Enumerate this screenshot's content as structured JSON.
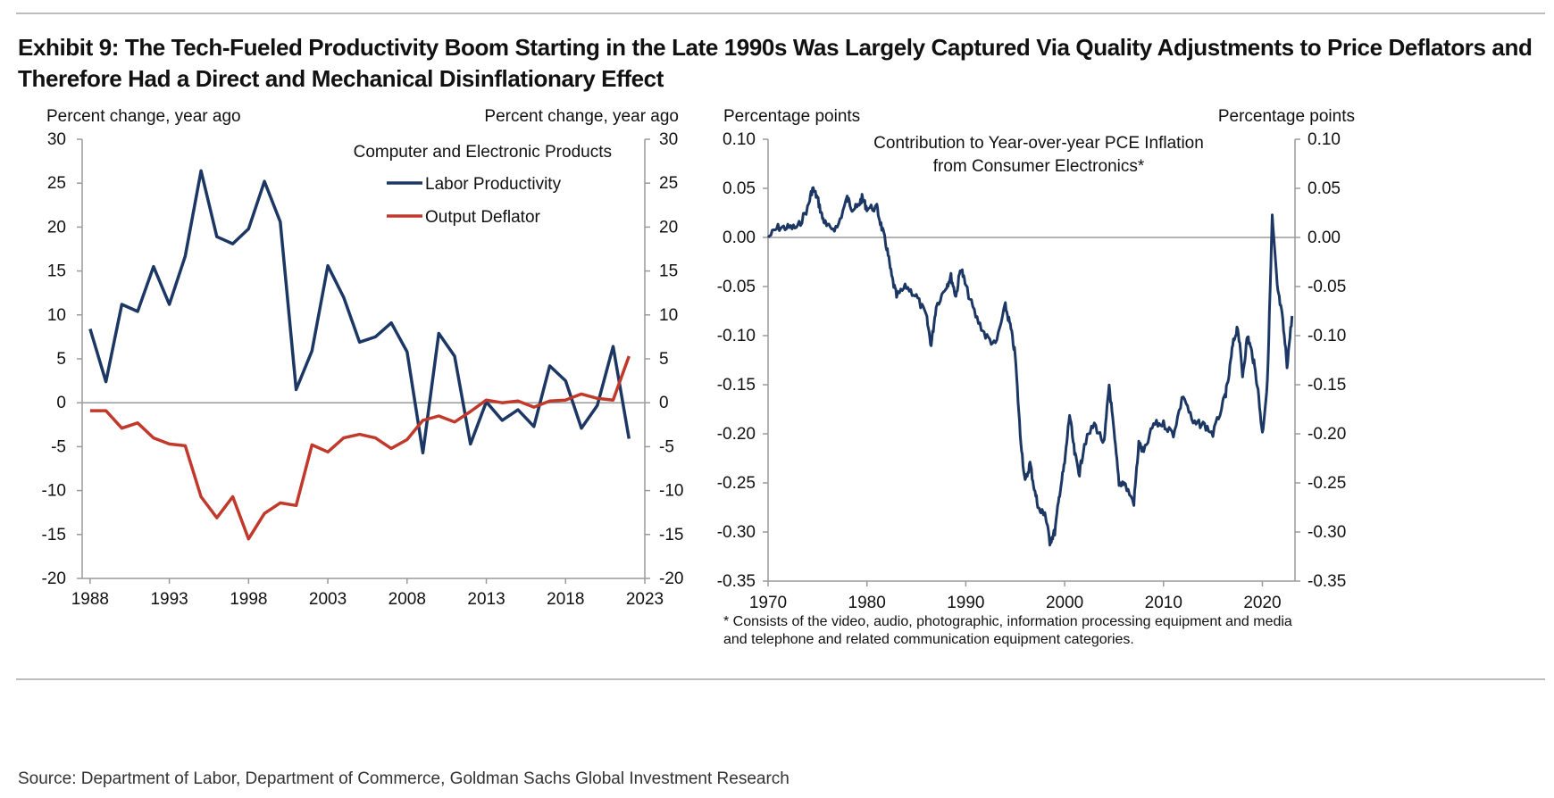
{
  "title": "Exhibit 9: The Tech-Fueled Productivity Boom Starting in the Late 1990s Was Largely Captured Via Quality Adjustments to Price Deflators and Therefore Had a Direct and Mechanical Disinflationary Effect",
  "source": "Source: Department of Labor, Department of Commerce, Goldman Sachs Global Investment Research",
  "colors": {
    "navy": "#1c3764",
    "red": "#c0392b",
    "axis": "#9a9a9a"
  },
  "chart_data": [
    {
      "type": "line",
      "title": "Computer and Electronic Products",
      "ylabel_left": "Percent change, year ago",
      "ylabel_right": "Percent change, year ago",
      "ylim": [
        -20,
        30
      ],
      "yticks": [
        30,
        25,
        20,
        15,
        10,
        5,
        0,
        -5,
        -10,
        -15,
        -20
      ],
      "xlim": [
        1987.5,
        2023
      ],
      "xticks": [
        "1988",
        "1993",
        "1998",
        "2003",
        "2008",
        "2013",
        "2018",
        "2023"
      ],
      "legend_position": "top-right",
      "grid": false,
      "x": [
        1988,
        1989,
        1990,
        1991,
        1992,
        1993,
        1994,
        1995,
        1996,
        1997,
        1998,
        1999,
        2000,
        2001,
        2002,
        2003,
        2004,
        2005,
        2006,
        2007,
        2008,
        2009,
        2010,
        2011,
        2012,
        2013,
        2014,
        2015,
        2016,
        2017,
        2018,
        2019,
        2020,
        2021,
        2022
      ],
      "series": [
        {
          "name": "Labor Productivity",
          "color": "#1c3764",
          "values": [
            8.4,
            2.4,
            11.2,
            10.4,
            15.5,
            11.2,
            16.7,
            26.4,
            18.9,
            18.1,
            19.8,
            25.2,
            20.6,
            1.5,
            5.9,
            15.6,
            12,
            6.9,
            7.5,
            9.1,
            5.8,
            -5.7,
            7.9,
            5.3,
            -4.7,
            0.1,
            -2,
            -0.8,
            -2.7,
            4.2,
            2.5,
            -2.9,
            -0.3,
            6.4,
            -4.1
          ]
        },
        {
          "name": "Output Deflator",
          "color": "#c0392b",
          "values": [
            -0.9,
            -0.9,
            -2.9,
            -2.3,
            -4,
            -4.7,
            -4.9,
            -10.7,
            -13.1,
            -10.7,
            -15.5,
            -12.6,
            -11.4,
            -11.7,
            -4.8,
            -5.6,
            -4,
            -3.6,
            -4,
            -5.2,
            -4.2,
            -2,
            -1.5,
            -2.2,
            -1,
            0.3,
            0,
            0.2,
            -0.5,
            0.2,
            0.3,
            1,
            0.5,
            0.3,
            5.3
          ]
        }
      ]
    },
    {
      "type": "line",
      "title": "Contribution to Year-over-year PCE Inflation from Consumer Electronics*",
      "title_lines": [
        "Contribution to Year-over-year PCE Inflation",
        "from Consumer Electronics*"
      ],
      "ylabel_left": "Percentage points",
      "ylabel_right": "Percentage points",
      "ylim": [
        -0.35,
        0.1
      ],
      "yticks": [
        "0.10",
        "0.05",
        "0.00",
        "-0.05",
        "-0.10",
        "-0.15",
        "-0.20",
        "-0.25",
        "-0.30",
        "-0.35"
      ],
      "xlim": [
        1970,
        2023.3
      ],
      "xticks": [
        "1970",
        "1980",
        "1990",
        "2000",
        "2010",
        "2020"
      ],
      "grid": false,
      "footnote_lines": [
        "* Consists of the video, audio, photographic, information processing equipment and media",
        "and telephone and related communication equipment categories."
      ],
      "series": [
        {
          "name": "",
          "color": "#1c3764",
          "x": [
            1970,
            1971,
            1972,
            1973,
            1974,
            1974.5,
            1975,
            1975.5,
            1976,
            1977,
            1978,
            1978.5,
            1979,
            1979.5,
            1980,
            1981,
            1981.5,
            1982,
            1982.5,
            1983,
            1984,
            1985,
            1986,
            1986.5,
            1987,
            1988,
            1988.5,
            1989,
            1989.5,
            1990,
            1991,
            1992,
            1993,
            1994,
            1994.5,
            1995,
            1995.5,
            1996,
            1996.5,
            1997,
            1997.5,
            1998,
            1998.5,
            1999,
            1999.5,
            2000,
            2000.5,
            2001,
            2001.5,
            2002,
            2003,
            2004,
            2004.5,
            2005,
            2005.5,
            2006,
            2007,
            2007.5,
            2008,
            2009,
            2010,
            2011,
            2012,
            2013,
            2014,
            2015,
            2016,
            2016.5,
            2017,
            2017.5,
            2018,
            2018.5,
            2019,
            2019.5,
            2020,
            2020.5,
            2021,
            2021.5,
            2022,
            2022.5,
            2023
          ],
          "values": [
            0,
            0.01,
            0.01,
            0.01,
            0.03,
            0.05,
            0.04,
            0.02,
            0.01,
            0.01,
            0.04,
            0.03,
            0.03,
            0.04,
            0.03,
            0.03,
            0.01,
            -0.01,
            -0.04,
            -0.06,
            -0.05,
            -0.06,
            -0.08,
            -0.11,
            -0.07,
            -0.05,
            -0.04,
            -0.06,
            -0.03,
            -0.05,
            -0.08,
            -0.1,
            -0.11,
            -0.07,
            -0.09,
            -0.12,
            -0.2,
            -0.25,
            -0.23,
            -0.26,
            -0.28,
            -0.28,
            -0.31,
            -0.3,
            -0.26,
            -0.23,
            -0.18,
            -0.22,
            -0.24,
            -0.21,
            -0.19,
            -0.21,
            -0.15,
            -0.2,
            -0.25,
            -0.25,
            -0.27,
            -0.21,
            -0.22,
            -0.19,
            -0.19,
            -0.2,
            -0.16,
            -0.19,
            -0.19,
            -0.2,
            -0.17,
            -0.15,
            -0.11,
            -0.09,
            -0.14,
            -0.1,
            -0.12,
            -0.15,
            -0.2,
            -0.15,
            0.02,
            -0.05,
            -0.08,
            -0.13,
            -0.08
          ]
        }
      ]
    }
  ]
}
